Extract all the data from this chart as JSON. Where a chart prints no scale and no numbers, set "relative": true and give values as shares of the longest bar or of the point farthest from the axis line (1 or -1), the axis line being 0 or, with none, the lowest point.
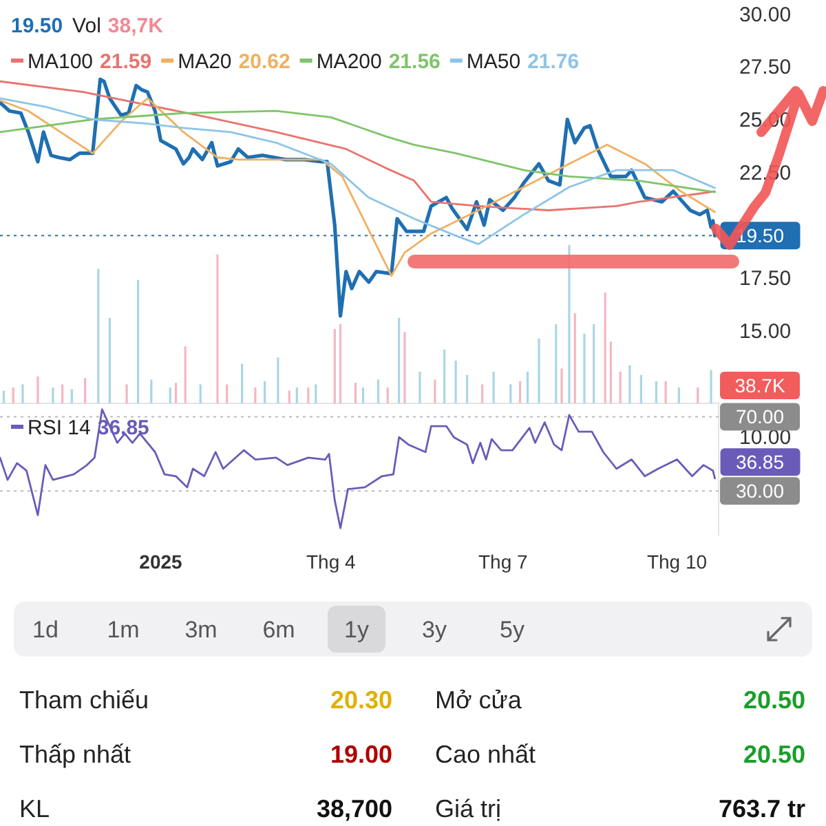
{
  "chart_data": [
    {
      "type": "line",
      "xlim": [
        "2024-10-08",
        "2025-10-23"
      ],
      "ylim": [
        10,
        30
      ],
      "yticks": [
        {
          "value": 10,
          "label": "10.00"
        },
        {
          "value": 15,
          "label": "15.00"
        },
        {
          "value": 17.5,
          "label": "17.50"
        },
        {
          "value": 22.5,
          "label": "22.50"
        },
        {
          "value": 25,
          "label": "25.00"
        },
        {
          "value": 27.5,
          "label": "27.50"
        },
        {
          "value": 30,
          "label": "30.00"
        }
      ],
      "tick_labels": "y",
      "legend": "top left",
      "grid": false,
      "ref_lines": [
        {
          "axis": "y",
          "value": 19.5,
          "color": "#2f6fa8",
          "line_style": "dotted"
        }
      ],
      "annotations": [
        {
          "text": "19.50",
          "x": "2025-10-21",
          "y": 19.5
        },
        "19.50",
        "21.59",
        "20.62",
        "21.56",
        "21.76"
      ],
      "series": [
        {
          "color": "#1f6fb2",
          "x": [
            "2024-10-08",
            "2024-10-13",
            "2024-10-19",
            "2024-10-23",
            "2024-10-28",
            "2024-10-31",
            "2024-11-04",
            "2024-11-08",
            "2024-11-14",
            "2024-11-19",
            "2024-11-26",
            "2024-11-30",
            "2024-12-02",
            "2024-12-05",
            "2024-12-11",
            "2024-12-15",
            "2024-12-19",
            "2024-12-22",
            "2024-12-25",
            "2024-12-29",
            "2025-01-01",
            "2025-01-09",
            "2025-01-13",
            "2025-01-16",
            "2025-01-18",
            "2025-01-23",
            "2025-01-28",
            "2025-01-31",
            "2025-02-07",
            "2025-02-11",
            "2025-02-16",
            "2025-02-24",
            "2025-03-08",
            "2025-03-18",
            "2025-03-27",
            "2025-03-30",
            "2025-04-03",
            "2025-04-06",
            "2025-04-09",
            "2025-04-12",
            "2025-04-16",
            "2025-04-21",
            "2025-04-25",
            "2025-05-03",
            "2025-05-06",
            "2025-05-11",
            "2025-05-20",
            "2025-05-24",
            "2025-06-01",
            "2025-06-04",
            "2025-06-12",
            "2025-06-17",
            "2025-06-21",
            "2025-06-24",
            "2025-07-01",
            "2025-07-07",
            "2025-07-12",
            "2025-07-20",
            "2025-07-25",
            "2025-07-31",
            "2025-08-04",
            "2025-08-08",
            "2025-08-13",
            "2025-08-16",
            "2025-08-20",
            "2025-08-27",
            "2025-09-04",
            "2025-09-07",
            "2025-09-14",
            "2025-09-23",
            "2025-09-29",
            "2025-10-08",
            "2025-10-13",
            "2025-10-17",
            "2025-10-19",
            "2025-10-20",
            "2025-10-21"
          ],
          "values": [
            25.8,
            25.4,
            25.3,
            24.4,
            23.0,
            24.4,
            23.3,
            23.2,
            23.1,
            23.4,
            23.4,
            26.9,
            26.8,
            26.0,
            25.2,
            25.3,
            26.6,
            26.4,
            26.3,
            25.4,
            24.0,
            23.6,
            22.9,
            23.2,
            23.6,
            23.1,
            23.9,
            22.8,
            23.0,
            23.6,
            23.2,
            23.3,
            23.1,
            23.1,
            23.0,
            23.0,
            20.0,
            15.7,
            17.8,
            17.0,
            17.8,
            17.3,
            17.8,
            17.7,
            20.3,
            19.7,
            19.7,
            20.9,
            21.3,
            20.8,
            19.8,
            21.1,
            20.0,
            21.2,
            20.7,
            21.3,
            22.0,
            22.9,
            22.1,
            21.9,
            25.0,
            23.9,
            24.6,
            24.7,
            23.6,
            22.3,
            22.3,
            22.6,
            21.3,
            21.1,
            21.6,
            20.7,
            20.5,
            20.7,
            19.9,
            20.2,
            19.5
          ]
        },
        {
          "name": "MA100",
          "color": "#e8736f",
          "x": [
            "2024-10-08",
            "2024-11-21",
            "2025-01-26",
            "2025-03-03",
            "2025-04-09",
            "2025-04-30",
            "2025-05-15",
            "2025-05-24",
            "2025-06-18",
            "2025-07-25",
            "2025-08-30",
            "2025-09-11",
            "2025-10-21"
          ],
          "values": [
            26.8,
            26.3,
            25.1,
            24.4,
            23.6,
            22.7,
            22.1,
            21.1,
            20.9,
            20.7,
            20.9,
            21.1,
            21.59
          ]
        },
        {
          "name": "MA20",
          "color": "#f0b060",
          "x": [
            "2024-10-08",
            "2024-10-23",
            "2024-11-26",
            "2024-12-11",
            "2024-12-25",
            "2025-01-13",
            "2025-01-31",
            "2025-02-11",
            "2025-03-27",
            "2025-04-07",
            "2025-05-03",
            "2025-05-10",
            "2025-05-24",
            "2025-06-18",
            "2025-07-12",
            "2025-08-05",
            "2025-08-25",
            "2025-09-14",
            "2025-10-03",
            "2025-10-21"
          ],
          "values": [
            25.9,
            25.4,
            23.4,
            24.9,
            26.0,
            24.4,
            23.2,
            23.1,
            23.1,
            22.3,
            17.6,
            18.7,
            19.6,
            20.7,
            21.8,
            22.9,
            23.8,
            22.9,
            21.6,
            20.62
          ]
        },
        {
          "name": "MA200",
          "color": "#7ec46a",
          "x": [
            "2024-10-08",
            "2024-11-26",
            "2025-01-13",
            "2025-03-03",
            "2025-04-01",
            "2025-04-30",
            "2025-05-15",
            "2025-06-06",
            "2025-07-12",
            "2025-08-05",
            "2025-09-11",
            "2025-10-21"
          ],
          "values": [
            24.4,
            25.0,
            25.3,
            25.4,
            25.1,
            24.2,
            23.8,
            23.4,
            22.6,
            22.3,
            22.1,
            21.56
          ]
        },
        {
          "name": "MA50",
          "color": "#8cc4e8",
          "x": [
            "2024-10-08",
            "2024-11-01",
            "2024-11-26",
            "2024-12-25",
            "2025-01-13",
            "2025-02-07",
            "2025-03-03",
            "2025-04-01",
            "2025-04-21",
            "2025-05-15",
            "2025-06-06",
            "2025-06-18",
            "2025-07-12",
            "2025-08-05",
            "2025-08-30",
            "2025-09-29",
            "2025-10-21"
          ],
          "values": [
            26.0,
            25.6,
            25.0,
            24.8,
            24.6,
            24.4,
            23.9,
            22.9,
            21.3,
            20.3,
            19.5,
            19.1,
            20.5,
            21.8,
            22.6,
            22.6,
            21.76
          ]
        }
      ]
    },
    {
      "type": "bar",
      "relative": true,
      "title": "Vol",
      "annotations": [
        "38,7K",
        "38.7K"
      ],
      "xlim": [
        "2024-10-08",
        "2025-10-23"
      ],
      "tick_labels": false,
      "series": [
        {
          "color": "#a9d6e5",
          "x": [
            "2024-10-10",
            "2024-10-20",
            "2024-11-05",
            "2024-11-15",
            "2024-11-29",
            "2024-12-05",
            "2024-12-20",
            "2024-12-27",
            "2025-01-06",
            "2025-01-22",
            "2025-02-13",
            "2025-02-25",
            "2025-03-04",
            "2025-03-14",
            "2025-03-24",
            "2025-04-18",
            "2025-04-26",
            "2025-05-07",
            "2025-05-18",
            "2025-05-31",
            "2025-06-06",
            "2025-06-12",
            "2025-06-26",
            "2025-07-05",
            "2025-07-14",
            "2025-07-20",
            "2025-07-29",
            "2025-08-05",
            "2025-08-13",
            "2025-08-18",
            "2025-09-06",
            "2025-09-12",
            "2025-09-20",
            "2025-10-02",
            "2025-10-19"
          ],
          "values": [
            0.08,
            0.12,
            0.1,
            0.09,
            0.85,
            0.54,
            0.78,
            0.15,
            0.1,
            0.12,
            0.25,
            0.14,
            0.29,
            0.1,
            0.12,
            0.1,
            0.15,
            0.54,
            0.2,
            0.34,
            0.27,
            0.18,
            0.2,
            0.12,
            0.2,
            0.41,
            0.5,
            1,
            0.44,
            0.5,
            0.24,
            0.18,
            0.14,
            0.1,
            0.21
          ]
        },
        {
          "color": "#f4b6c2",
          "x": [
            "2024-10-15",
            "2024-10-28",
            "2024-11-10",
            "2024-11-22",
            "2024-12-14",
            "2025-01-09",
            "2025-01-14",
            "2025-01-31",
            "2025-02-05",
            "2025-02-20",
            "2025-03-10",
            "2025-03-20",
            "2025-04-03",
            "2025-04-06",
            "2025-04-14",
            "2025-05-01",
            "2025-05-10",
            "2025-05-26",
            "2025-06-20",
            "2025-07-10",
            "2025-08-01",
            "2025-08-08",
            "2025-08-24",
            "2025-08-27",
            "2025-09-01",
            "2025-09-25",
            "2025-10-12"
          ],
          "values": [
            0.1,
            0.17,
            0.12,
            0.16,
            0.12,
            0.13,
            0.36,
            0.94,
            0.12,
            0.1,
            0.08,
            0.1,
            0.47,
            0.5,
            0.13,
            0.1,
            0.45,
            0.15,
            0.12,
            0.14,
            0.22,
            0.57,
            0.7,
            0.39,
            0.2,
            0.14,
            0.1
          ]
        }
      ]
    },
    {
      "type": "line",
      "xlim": [
        "2024-10-08",
        "2025-10-23"
      ],
      "ylim": [
        6,
        78
      ],
      "yticks": [
        {
          "value": 70,
          "label": "70.00"
        },
        {
          "value": 30,
          "label": "30.00"
        }
      ],
      "xticks": [
        {
          "value": "2025-01-01",
          "label": "2025"
        },
        {
          "value": "2025-04-01",
          "label": "Thg 4"
        },
        {
          "value": "2025-07-01",
          "label": "Thg 7"
        },
        {
          "value": "2025-10-01",
          "label": "Thg 10"
        }
      ],
      "grid": "y",
      "legend": "top left",
      "annotations": [
        {
          "text": "36.85",
          "x": "2025-10-21",
          "y": 36.85
        },
        "36.85"
      ],
      "series": [
        {
          "name": "RSI 14",
          "color": "#6b5bb8",
          "x": [
            "2024-10-08",
            "2024-10-12",
            "2024-10-17",
            "2024-10-22",
            "2024-10-28",
            "2024-11-01",
            "2024-11-05",
            "2024-11-16",
            "2024-11-23",
            "2024-11-27",
            "2024-12-01",
            "2024-12-05",
            "2024-12-09",
            "2024-12-13",
            "2024-12-17",
            "2024-12-21",
            "2024-12-29",
            "2025-01-03",
            "2025-01-09",
            "2025-01-15",
            "2025-01-18",
            "2025-01-24",
            "2025-01-30",
            "2025-02-03",
            "2025-02-14",
            "2025-02-20",
            "2025-03-03",
            "2025-03-09",
            "2025-03-20",
            "2025-03-29",
            "2025-03-31",
            "2025-04-03",
            "2025-04-06",
            "2025-04-10",
            "2025-04-19",
            "2025-04-28",
            "2025-05-04",
            "2025-05-07",
            "2025-05-12",
            "2025-05-21",
            "2025-05-24",
            "2025-06-01",
            "2025-06-05",
            "2025-06-12",
            "2025-06-15",
            "2025-06-19",
            "2025-06-22",
            "2025-06-25",
            "2025-06-30",
            "2025-07-06",
            "2025-07-15",
            "2025-07-18",
            "2025-07-23",
            "2025-07-28",
            "2025-08-01",
            "2025-08-05",
            "2025-08-10",
            "2025-08-17",
            "2025-08-23",
            "2025-08-30",
            "2025-09-07",
            "2025-09-14",
            "2025-09-21",
            "2025-10-01",
            "2025-10-09",
            "2025-10-15",
            "2025-10-20",
            "2025-10-21"
          ],
          "values": [
            48,
            36,
            45,
            41,
            17,
            44,
            36,
            39,
            44,
            48,
            74,
            65,
            56,
            61,
            56,
            61,
            51,
            39,
            38,
            32,
            42,
            38,
            51,
            42,
            52,
            47,
            48,
            44,
            48,
            47,
            50,
            25,
            10,
            31,
            32,
            38,
            39,
            59,
            55,
            51,
            65,
            65,
            59,
            55,
            45,
            56,
            47,
            58,
            52,
            52,
            64,
            56,
            67,
            55,
            52,
            71,
            62,
            62,
            51,
            42,
            47,
            38,
            42,
            47,
            38,
            44,
            41,
            36.85
          ]
        }
      ]
    },
    {
      "type": "other",
      "annotations": [
        "1d",
        "1m",
        "3m",
        "6m",
        "1y",
        "3y",
        "5y"
      ]
    },
    {
      "type": "other",
      "annotations": [
        "Tham chiếu",
        "20.30",
        "Mở cửa",
        "20.50",
        "Thấp nhất",
        "19.00",
        "Cao nhất",
        "20.50",
        "KL",
        "38,700",
        "Giá trị",
        "763.7 tr"
      ],
      "colors": [
        "#222222",
        "#e0b000",
        "#222222",
        "#1a9e2a",
        "#222222",
        "#b00000",
        "#222222",
        "#1a9e2a",
        "#222222",
        "#111111",
        "#222222",
        "#111111"
      ]
    }
  ]
}
